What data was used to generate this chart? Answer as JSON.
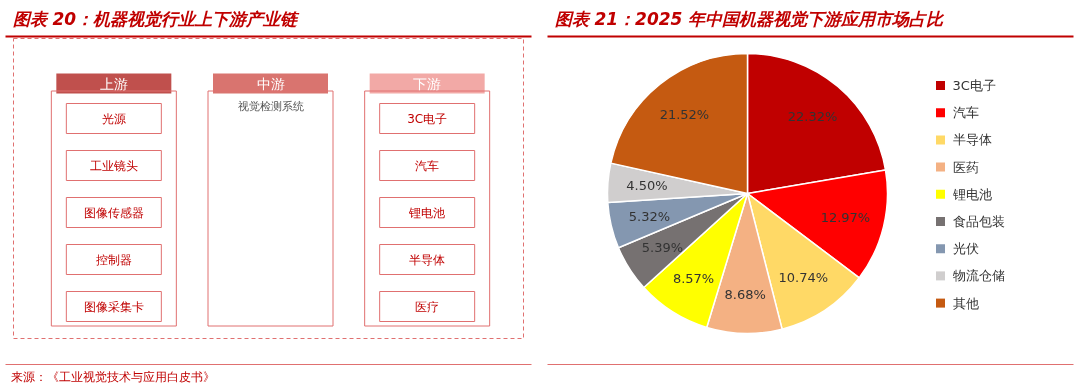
{
  "chart_data": [
    {
      "type": "other",
      "title": "图表 20：机器视觉行业上下游产业链",
      "categories": [
        "上游",
        "中游",
        "下游"
      ],
      "colors": [
        "#c0504d",
        "#d9746f",
        "#f2a9a6"
      ],
      "annotations": [
        "光源",
        "工业镜头",
        "图像传感器",
        "控制器",
        "图像采集卡",
        "视觉检测系统",
        "3C电子",
        "汽车",
        "锂电池",
        "半导体",
        "医疗",
        "来源：《工业视觉技术与应用白皮书》"
      ]
    },
    {
      "type": "pie",
      "title": "图表 21：2025 年中国机器视觉下游应用市场占比",
      "categories": [
        "3C电子",
        "汽车",
        "半导体",
        "医药",
        "锂电池",
        "食品包装",
        "光伏",
        "物流仓储",
        "其他"
      ],
      "values": [
        22.32,
        12.97,
        10.74,
        8.68,
        8.57,
        5.39,
        5.32,
        4.5,
        21.52
      ],
      "value_labels": [
        "22.32%",
        "12.97%",
        "10.74%",
        "8.68%",
        "8.57%",
        "5.39%",
        "5.32%",
        "4.50%",
        "21.52%"
      ],
      "colors": [
        "#c00000",
        "#ff0000",
        "#ffd966",
        "#f4b183",
        "#ffff00",
        "#767171",
        "#8497b0",
        "#d0cece",
        "#c55a11"
      ],
      "legend": "right"
    }
  ]
}
